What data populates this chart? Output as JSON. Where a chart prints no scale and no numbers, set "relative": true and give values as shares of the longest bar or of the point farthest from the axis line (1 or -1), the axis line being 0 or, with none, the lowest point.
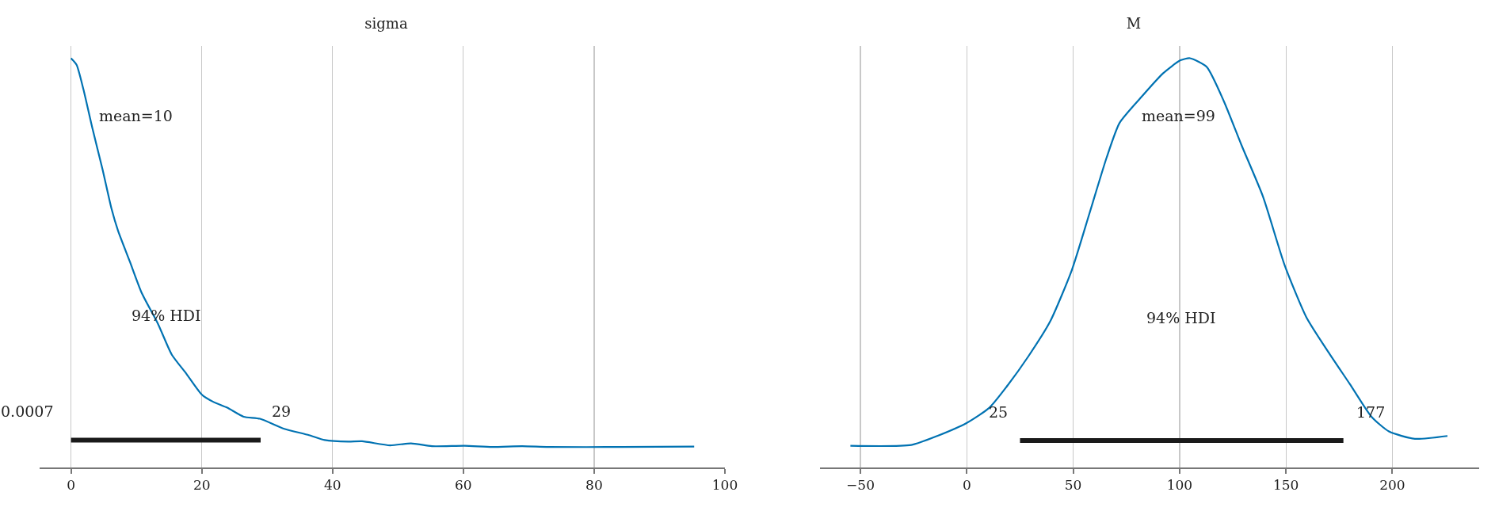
{
  "chart_data": [
    {
      "type": "line",
      "title": "sigma",
      "relative": true,
      "grid": "x",
      "xlim": [
        -4.8,
        100
      ],
      "xticks": [
        0,
        20,
        40,
        60,
        80,
        100
      ],
      "series": [
        {
          "color": "#0072b2",
          "x": [
            0,
            0.85,
            1.9,
            3.3,
            4.8,
            6.2,
            7.2,
            9.0,
            10.8,
            13.3,
            15.4,
            17.5,
            20,
            21.8,
            23.9,
            26.4,
            28.9,
            32.5,
            36.4,
            38.8,
            42.4,
            44.5,
            48.8,
            52,
            55.2,
            60.2,
            64.4,
            69,
            73,
            84.3,
            95.3
          ],
          "values": [
            1.0,
            0.984,
            0.924,
            0.827,
            0.73,
            0.632,
            0.578,
            0.503,
            0.427,
            0.351,
            0.276,
            0.232,
            0.178,
            0.16,
            0.146,
            0.124,
            0.119,
            0.095,
            0.079,
            0.067,
            0.063,
            0.064,
            0.054,
            0.059,
            0.052,
            0.053,
            0.05,
            0.052,
            0.05,
            0.05,
            0.051
          ]
        },
        {
          "color": "#1a1a1a",
          "x": [
            0.0007,
            29
          ],
          "values": [
            0.067,
            0.067
          ]
        }
      ],
      "annotations": [
        "mean=10",
        "94% HDI",
        "0.0007",
        "29"
      ]
    },
    {
      "type": "line",
      "title": "M",
      "relative": true,
      "grid": "x",
      "xlim": [
        -69,
        240.8
      ],
      "xticks": [
        {
          "value": -50,
          "label": "−50"
        },
        0,
        50,
        100,
        150,
        200
      ],
      "series": [
        {
          "color": "#0072b2",
          "x": [
            -54.7,
            -26.1,
            -13.9,
            0,
            10.6,
            18.8,
            29,
            39.2,
            49.4,
            57.6,
            65.7,
            71.8,
            82,
            92.2,
            100.4,
            104.9,
            112.7,
            120.8,
            129,
            139.2,
            149.4,
            159.6,
            169.8,
            180,
            190.2,
            198.4,
            210.6,
            225.9
          ],
          "values": [
            0.053,
            0.055,
            0.077,
            0.109,
            0.146,
            0.198,
            0.272,
            0.357,
            0.483,
            0.62,
            0.757,
            0.842,
            0.905,
            0.963,
            0.995,
            1.0,
            0.979,
            0.895,
            0.789,
            0.662,
            0.494,
            0.367,
            0.283,
            0.204,
            0.124,
            0.088,
            0.07,
            0.077
          ]
        },
        {
          "color": "#1a1a1a",
          "x": [
            25,
            177
          ],
          "values": [
            0.066,
            0.066
          ]
        }
      ],
      "annotations": [
        "mean=99",
        "94% HDI",
        "25",
        "177"
      ]
    }
  ]
}
